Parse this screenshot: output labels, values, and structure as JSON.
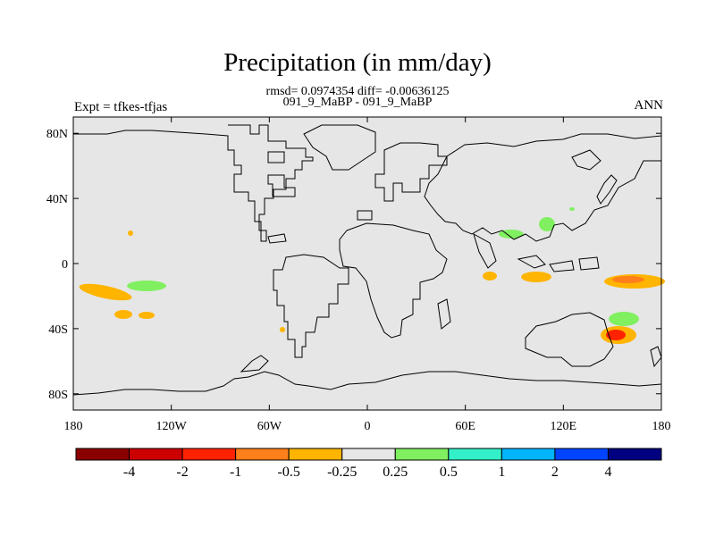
{
  "title": "Precipitation (in mm/day)",
  "subtitle_stats": "rmsd= 0.0974354 diff= -0.00636125",
  "subtitle_cases": "091_9_MaBP - 091_9_MaBP",
  "left_label": "Expt = tfkes-tfjas",
  "right_label": "ANN",
  "map": {
    "lon_ticks": [
      "180",
      "120W",
      "60W",
      "0",
      "60E",
      "120E",
      "180"
    ],
    "lat_ticks": [
      "80N",
      "40N",
      "0",
      "40S",
      "80S"
    ],
    "background_color": "#e6e6e6"
  },
  "colorbar": {
    "colors": [
      "#8b0000",
      "#cc0000",
      "#ff2200",
      "#ff7f1a",
      "#ffb400",
      "#e6e6e6",
      "#80f060",
      "#33f0c8",
      "#00b4ff",
      "#0044ff",
      "#000080"
    ],
    "labels": [
      "-4",
      "-2",
      "-1",
      "-0.5",
      "-0.25",
      "0.25",
      "0.5",
      "1",
      "2",
      "4"
    ]
  }
}
